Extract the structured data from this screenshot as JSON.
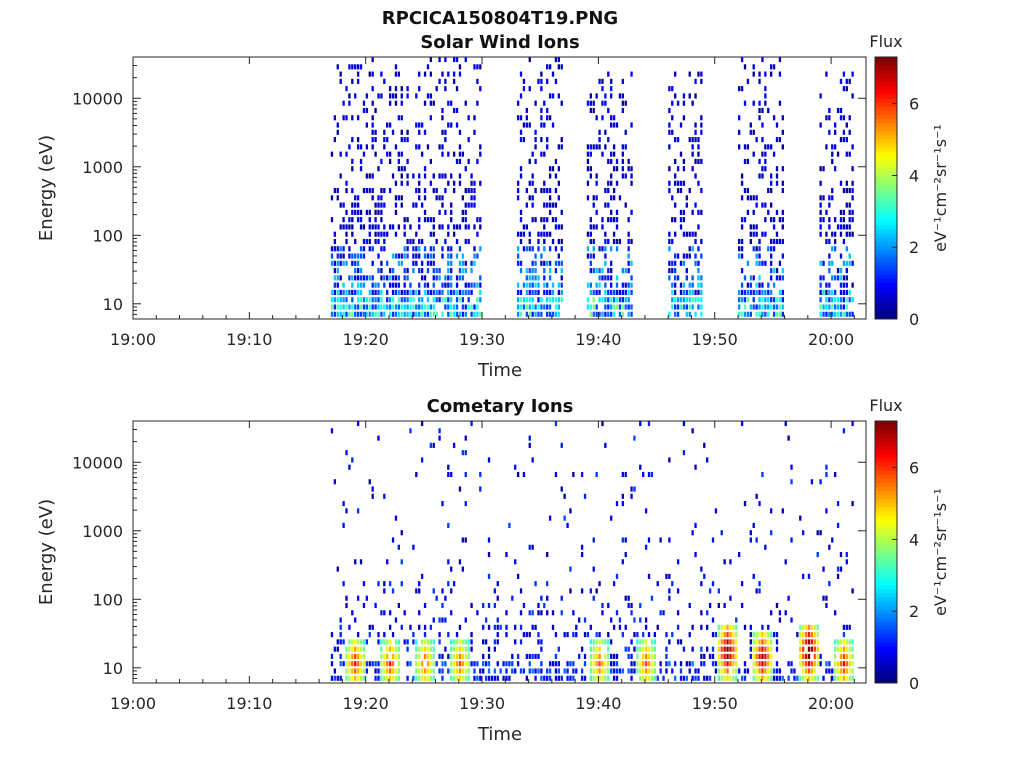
{
  "figure": {
    "title": "RPCICA150804T19.PNG"
  },
  "chart_data": [
    {
      "type": "heatmap",
      "title": "Solar Wind Ions",
      "xlabel": "Time",
      "ylabel": "Energy (eV)",
      "x_ticks": [
        "19:00",
        "19:10",
        "19:20",
        "19:30",
        "19:40",
        "19:50",
        "20:00"
      ],
      "y_ticks": [
        "10",
        "100",
        "1000",
        "10000"
      ],
      "y_scale": "log",
      "xlim": [
        "19:00",
        "20:03"
      ],
      "ylim": [
        6,
        40000
      ],
      "colorbar": {
        "label_top": "Flux",
        "unit_label": "eV⁻¹cm⁻²sr⁻¹s⁻¹",
        "ticks": [
          "0",
          "2",
          "4",
          "6"
        ],
        "range": [
          0,
          7.3
        ],
        "colormap": "jet"
      },
      "colors": {
        "low": "#00008f",
        "mid": "#00ffff",
        "high": "#800000"
      },
      "data_description_segments": [
        {
          "start": "19:17",
          "end": "19:30",
          "max_energy_eV": 40000,
          "low_energy_flux": 2.5
        },
        {
          "start": "19:33",
          "end": "19:37",
          "max_energy_eV": 40000,
          "low_energy_flux": 2.5
        },
        {
          "start": "19:39",
          "end": "19:43",
          "max_energy_eV": 20000,
          "low_energy_flux": 2.8
        },
        {
          "start": "19:46",
          "end": "19:49",
          "max_energy_eV": 20000,
          "low_energy_flux": 2.5
        },
        {
          "start": "19:52",
          "end": "19:56",
          "max_energy_eV": 40000,
          "low_energy_flux": 2.5
        },
        {
          "start": "19:59",
          "end": "20:02",
          "max_energy_eV": 20000,
          "low_energy_flux": 2.5
        }
      ]
    },
    {
      "type": "heatmap",
      "title": "Cometary Ions",
      "xlabel": "Time",
      "ylabel": "Energy (eV)",
      "x_ticks": [
        "19:00",
        "19:10",
        "19:20",
        "19:30",
        "19:40",
        "19:50",
        "20:00"
      ],
      "y_ticks": [
        "10",
        "100",
        "1000",
        "10000"
      ],
      "y_scale": "log",
      "xlim": [
        "19:00",
        "20:03"
      ],
      "ylim": [
        6,
        40000
      ],
      "colorbar": {
        "label_top": "Flux",
        "unit_label": "eV⁻¹cm⁻²sr⁻¹s⁻¹",
        "ticks": [
          "0",
          "2",
          "4",
          "6"
        ],
        "range": [
          0,
          7.3
        ],
        "colormap": "jet"
      },
      "hotspots": [
        {
          "time": "19:19",
          "energy_eV": 10,
          "flux": 5.0
        },
        {
          "time": "19:22",
          "energy_eV": 10,
          "flux": 4.8
        },
        {
          "time": "19:25",
          "energy_eV": 10,
          "flux": 4.5
        },
        {
          "time": "19:28",
          "energy_eV": 10,
          "flux": 4.5
        },
        {
          "time": "19:40",
          "energy_eV": 10,
          "flux": 4.5
        },
        {
          "time": "19:44",
          "energy_eV": 10,
          "flux": 4.5
        },
        {
          "time": "19:51",
          "energy_eV": 15,
          "flux": 6.5
        },
        {
          "time": "19:54",
          "energy_eV": 12,
          "flux": 6.0
        },
        {
          "time": "19:58",
          "energy_eV": 15,
          "flux": 6.8
        },
        {
          "time": "20:01",
          "energy_eV": 10,
          "flux": 5.0
        }
      ]
    }
  ]
}
